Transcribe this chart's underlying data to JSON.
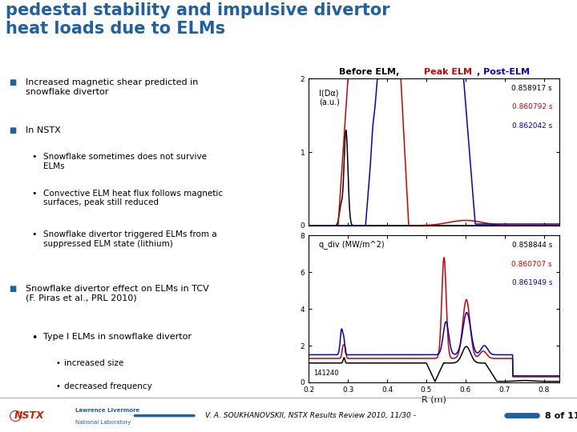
{
  "title_line1": "pedestal stability and impulsive divertor",
  "title_line2": "heat loads due to ELMs",
  "title_color": "#1F5FA6",
  "bg_color": "#FFFFFF",
  "header_line_color": "#2255AA",
  "bullet_color": "#1F5FA6",
  "plot1_ylabel": "I(Dα)\n(a.u.)",
  "plot1_ylim": [
    0,
    2
  ],
  "plot1_yticks": [
    0,
    1,
    2
  ],
  "plot2_ylabel": "q_div (MW/m^2)",
  "plot2_ylim": [
    0,
    8
  ],
  "plot2_yticks": [
    0,
    2,
    4,
    6,
    8
  ],
  "xlabel": "R (m)",
  "xlim": [
    0.2,
    0.84
  ],
  "xticks": [
    0.2,
    0.3,
    0.4,
    0.5,
    0.6,
    0.7,
    0.8
  ],
  "annotation1_black": "0.858917 s",
  "annotation1_red": "0.860792 s",
  "annotation1_blue": "0.862042 s",
  "annotation2_black": "0.858844 s",
  "annotation2_red": "0.860707 s",
  "annotation2_blue": "0.861949 s",
  "plot2_annotation": "141240",
  "footer_text": "V. A. SOUKHANOVSKII, NSTX Results Review 2010, 11/30 -",
  "footer_page": "8 of 11",
  "color_black": "#000000",
  "color_red": "#CC0000",
  "color_blue": "#0000CC",
  "nstx_color": "#CC2200"
}
